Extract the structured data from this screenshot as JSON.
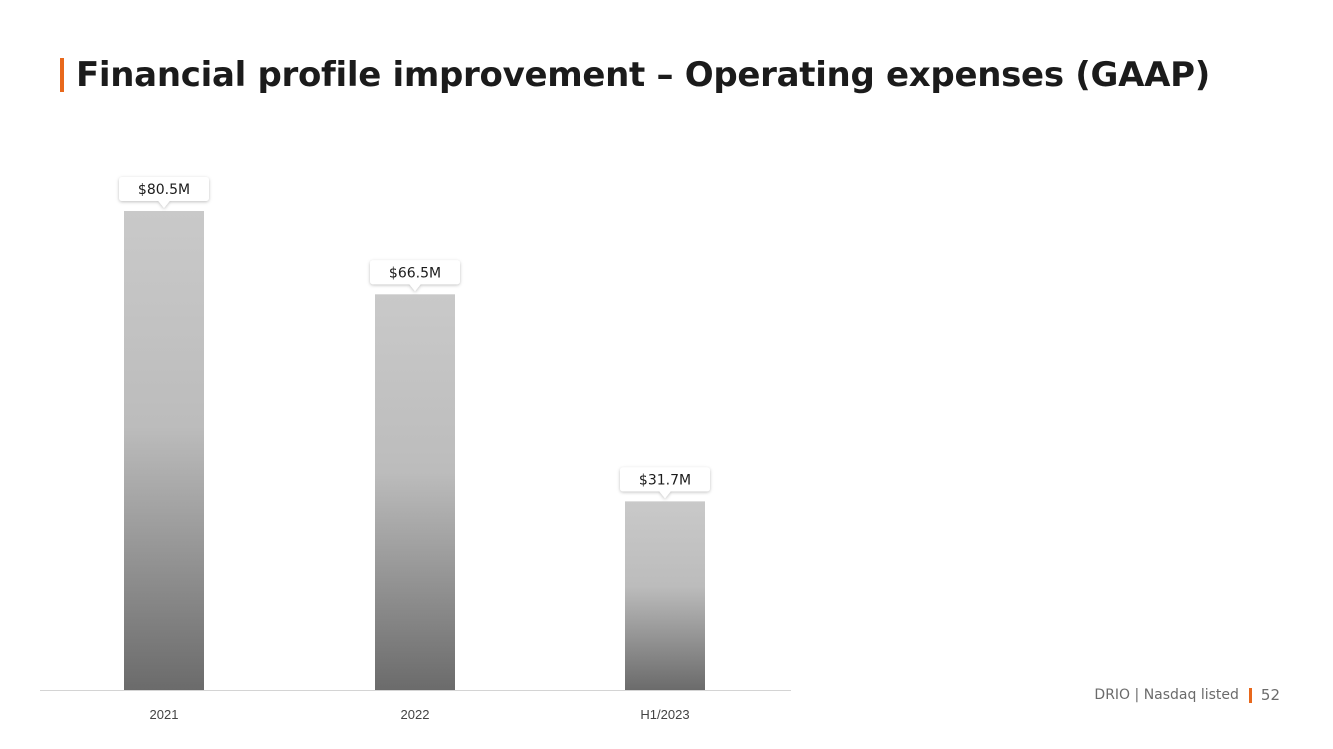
{
  "header": {
    "title": "Financial profile improvement – Operating expenses (GAAP)",
    "accent_color": "#e8681c"
  },
  "chart_data": {
    "type": "bar",
    "categories": [
      "2021",
      "2022",
      "H1/2023"
    ],
    "values": [
      80.5,
      66.5,
      31.7
    ],
    "data_labels": [
      "$80.5M",
      "$66.5M",
      "$31.7M"
    ],
    "title": "",
    "xlabel": "",
    "ylabel": "",
    "ylim": [
      0,
      80.5
    ],
    "grid": false,
    "legend": "none",
    "bar_gradient": [
      "#c9c9c9",
      "#6b6b6b"
    ]
  },
  "footer": {
    "company": "DRIO | Nasdaq listed",
    "page_number": "52"
  }
}
